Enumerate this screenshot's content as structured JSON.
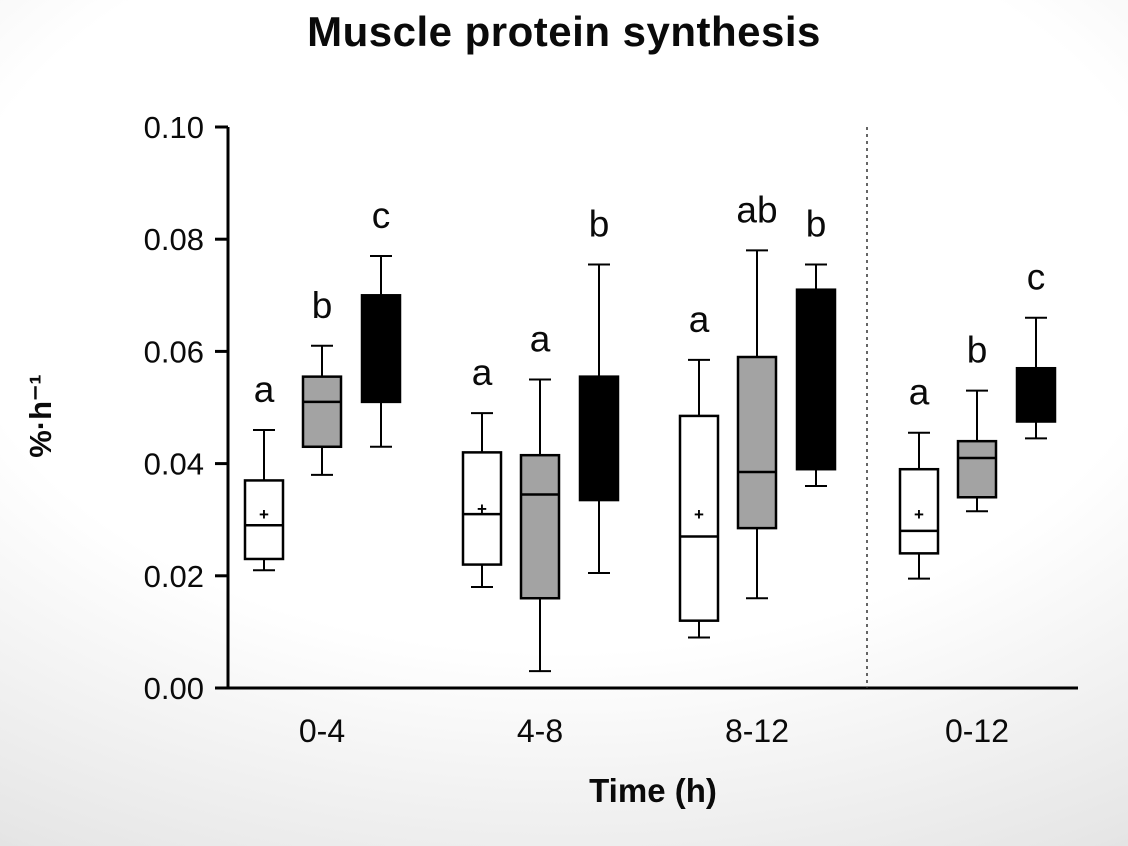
{
  "chart": {
    "title": "Muscle protein synthesis",
    "xlabel": "Time (h)",
    "ylabel": "%·h⁻¹"
  },
  "chart_data": {
    "type": "boxplot",
    "title": "Muscle protein synthesis",
    "xlabel": "Time (h)",
    "ylabel": "%·h⁻¹",
    "ylim": [
      0.0,
      0.1
    ],
    "grid": false,
    "legend": "none",
    "panel_separator_after": "8-12",
    "y_ticks": [
      {
        "value": 0.0,
        "label": "0.00"
      },
      {
        "value": 0.02,
        "label": "0.02"
      },
      {
        "value": 0.04,
        "label": "0.04"
      },
      {
        "value": 0.06,
        "label": "0.06"
      },
      {
        "value": 0.08,
        "label": "0.08"
      },
      {
        "value": 0.1,
        "label": "0.10"
      }
    ],
    "categories": [
      "0-4",
      "4-8",
      "8-12",
      "0-12"
    ],
    "series": [
      {
        "name": "white",
        "color": "#ffffff",
        "boxes": [
          {
            "whisker_low": 0.021,
            "q1": 0.023,
            "median": 0.029,
            "mean": 0.031,
            "q3": 0.037,
            "whisker_high": 0.046,
            "label": "a"
          },
          {
            "whisker_low": 0.018,
            "q1": 0.022,
            "median": 0.031,
            "mean": 0.032,
            "q3": 0.042,
            "whisker_high": 0.049,
            "label": "a"
          },
          {
            "whisker_low": 0.009,
            "q1": 0.012,
            "median": 0.027,
            "mean": 0.031,
            "q3": 0.0485,
            "whisker_high": 0.0585,
            "label": "a"
          },
          {
            "whisker_low": 0.0195,
            "q1": 0.024,
            "median": 0.028,
            "mean": 0.031,
            "q3": 0.039,
            "whisker_high": 0.0455,
            "label": "a"
          }
        ]
      },
      {
        "name": "gray",
        "color": "#a3a3a3",
        "boxes": [
          {
            "whisker_low": 0.038,
            "q1": 0.043,
            "median": 0.051,
            "mean": null,
            "q3": 0.0555,
            "whisker_high": 0.061,
            "label": "b"
          },
          {
            "whisker_low": 0.003,
            "q1": 0.016,
            "median": 0.0345,
            "mean": null,
            "q3": 0.0415,
            "whisker_high": 0.055,
            "label": "a"
          },
          {
            "whisker_low": 0.016,
            "q1": 0.0285,
            "median": 0.0385,
            "mean": null,
            "q3": 0.059,
            "whisker_high": 0.078,
            "label": "ab"
          },
          {
            "whisker_low": 0.0315,
            "q1": 0.034,
            "median": 0.041,
            "mean": null,
            "q3": 0.044,
            "whisker_high": 0.053,
            "label": "b"
          }
        ]
      },
      {
        "name": "black",
        "color": "#000000",
        "boxes": [
          {
            "whisker_low": 0.043,
            "q1": 0.051,
            "median": null,
            "mean": null,
            "q3": 0.07,
            "whisker_high": 0.077,
            "label": "c"
          },
          {
            "whisker_low": 0.0205,
            "q1": 0.0335,
            "median": null,
            "mean": null,
            "q3": 0.0555,
            "whisker_high": 0.0755,
            "label": "b"
          },
          {
            "whisker_low": 0.036,
            "q1": 0.039,
            "median": null,
            "mean": null,
            "q3": 0.071,
            "whisker_high": 0.0755,
            "label": "b"
          },
          {
            "whisker_low": 0.0445,
            "q1": 0.0475,
            "median": null,
            "mean": null,
            "q3": 0.057,
            "whisker_high": 0.066,
            "label": "c"
          }
        ]
      }
    ]
  }
}
